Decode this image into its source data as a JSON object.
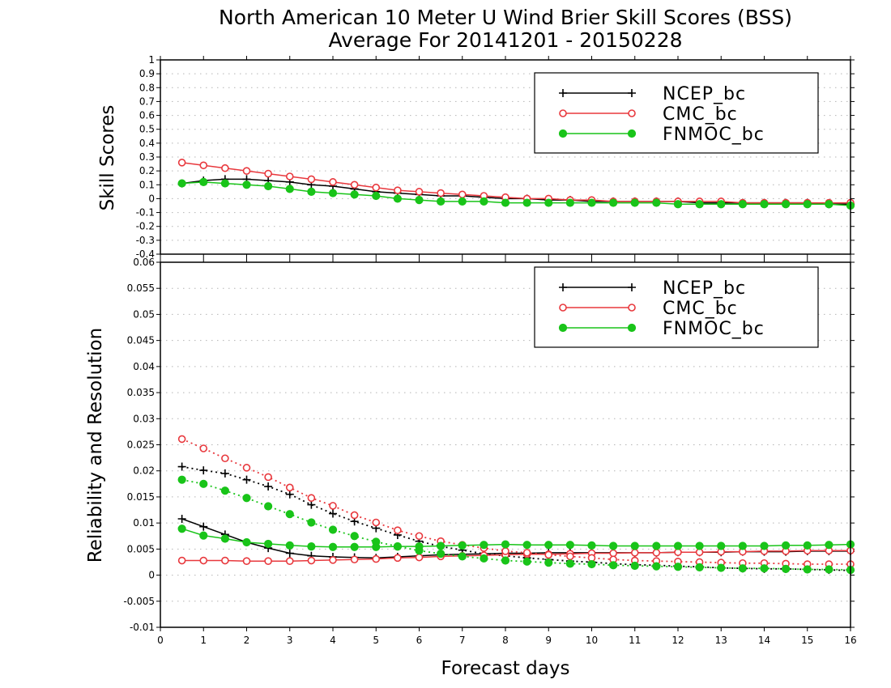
{
  "title_line1": "North American 10 Meter U Wind Brier Skill Scores (BSS)",
  "title_line2": "Average For 20141201 - 20150228",
  "colors": {
    "NCEP_bc": "#000000",
    "CMC_bc": "#e8383d",
    "FNMOC_bc": "#19c419"
  },
  "chart_data": [
    {
      "type": "line",
      "ylabel": "Skill Scores",
      "ylim": [
        -0.4,
        1
      ],
      "yticks": [
        "-0.4",
        "-0.3",
        "-0.2",
        "-0.1",
        "0",
        "0.1",
        "0.2",
        "0.3",
        "0.4",
        "0.5",
        "0.6",
        "0.7",
        "0.8",
        "0.9",
        "1"
      ],
      "xlim": [
        0,
        16
      ],
      "grid": true,
      "legend": {
        "position": "top-right",
        "labels": [
          "NCEP_bc",
          "CMC_bc",
          "FNMOC_bc"
        ]
      },
      "x": [
        0.5,
        1,
        1.5,
        2,
        2.5,
        3,
        3.5,
        4,
        4.5,
        5,
        5.5,
        6,
        6.5,
        7,
        7.5,
        8,
        8.5,
        9,
        9.5,
        10,
        10.5,
        11,
        11.5,
        12,
        12.5,
        13,
        13.5,
        14,
        14.5,
        15,
        15.5,
        16
      ],
      "series": [
        {
          "name": "NCEP_bc",
          "marker": "plus",
          "style": "solid",
          "values": [
            0.11,
            0.13,
            0.14,
            0.14,
            0.13,
            0.12,
            0.1,
            0.09,
            0.07,
            0.05,
            0.04,
            0.03,
            0.02,
            0.02,
            0.01,
            0.0,
            0.0,
            -0.01,
            -0.01,
            -0.02,
            -0.02,
            -0.02,
            -0.02,
            -0.02,
            -0.03,
            -0.03,
            -0.03,
            -0.03,
            -0.03,
            -0.03,
            -0.04,
            -0.04
          ]
        },
        {
          "name": "CMC_bc",
          "marker": "circle-open",
          "style": "solid",
          "values": [
            0.26,
            0.24,
            0.22,
            0.2,
            0.18,
            0.16,
            0.14,
            0.12,
            0.1,
            0.08,
            0.06,
            0.05,
            0.04,
            0.03,
            0.02,
            0.01,
            0.0,
            0.0,
            -0.01,
            -0.01,
            -0.02,
            -0.02,
            -0.02,
            -0.02,
            -0.02,
            -0.02,
            -0.03,
            -0.03,
            -0.03,
            -0.03,
            -0.03,
            -0.03
          ]
        },
        {
          "name": "FNMOC_bc",
          "marker": "circle-filled",
          "style": "solid",
          "values": [
            0.11,
            0.12,
            0.11,
            0.1,
            0.09,
            0.07,
            0.05,
            0.04,
            0.03,
            0.02,
            0.0,
            -0.01,
            -0.02,
            -0.02,
            -0.02,
            -0.03,
            -0.03,
            -0.03,
            -0.03,
            -0.03,
            -0.03,
            -0.03,
            -0.03,
            -0.04,
            -0.04,
            -0.04,
            -0.04,
            -0.04,
            -0.04,
            -0.04,
            -0.04,
            -0.05
          ]
        }
      ]
    },
    {
      "type": "line",
      "ylabel": "Reliability and Resolution",
      "xlabel": "Forecast days",
      "ylim": [
        -0.01,
        0.06
      ],
      "yticks": [
        "-0.01",
        "-0.005",
        "0",
        "0.005",
        "0.01",
        "0.015",
        "0.02",
        "0.025",
        "0.03",
        "0.035",
        "0.04",
        "0.045",
        "0.05",
        "0.055",
        "0.06"
      ],
      "xlim": [
        0,
        16
      ],
      "xticks": [
        "0",
        "1",
        "2",
        "3",
        "4",
        "5",
        "6",
        "7",
        "8",
        "9",
        "10",
        "11",
        "12",
        "13",
        "14",
        "15",
        "16"
      ],
      "grid": true,
      "legend": {
        "position": "top-right",
        "labels": [
          "NCEP_bc",
          "CMC_bc",
          "FNMOC_bc"
        ]
      },
      "x": [
        0.5,
        1,
        1.5,
        2,
        2.5,
        3,
        3.5,
        4,
        4.5,
        5,
        5.5,
        6,
        6.5,
        7,
        7.5,
        8,
        8.5,
        9,
        9.5,
        10,
        10.5,
        11,
        11.5,
        12,
        12.5,
        13,
        13.5,
        14,
        14.5,
        15,
        15.5,
        16
      ],
      "series": [
        {
          "name": "NCEP_bc",
          "marker": "plus",
          "style": "solid",
          "values": [
            0.0108,
            0.0093,
            0.0078,
            0.0063,
            0.0052,
            0.0042,
            0.0037,
            0.0035,
            0.0034,
            0.0033,
            0.0035,
            0.0037,
            0.0039,
            0.004,
            0.0041,
            0.0042,
            0.0042,
            0.0043,
            0.0043,
            0.0043,
            0.0043,
            0.0043,
            0.0043,
            0.0044,
            0.0044,
            0.0044,
            0.0045,
            0.0045,
            0.0045,
            0.0046,
            0.0046,
            0.0046
          ]
        },
        {
          "name": "NCEP_bc",
          "marker": "plus",
          "style": "dotted",
          "values": [
            0.0208,
            0.0201,
            0.0195,
            0.0183,
            0.017,
            0.0155,
            0.0135,
            0.0118,
            0.0103,
            0.009,
            0.0077,
            0.0065,
            0.0055,
            0.0048,
            0.0041,
            0.0037,
            0.0033,
            0.003,
            0.0027,
            0.0025,
            0.0022,
            0.002,
            0.0019,
            0.0017,
            0.0016,
            0.0014,
            0.0013,
            0.0012,
            0.0012,
            0.0011,
            0.001,
            0.0009
          ]
        },
        {
          "name": "CMC_bc",
          "marker": "circle-open",
          "style": "solid",
          "values": [
            0.0028,
            0.0028,
            0.0028,
            0.0027,
            0.0027,
            0.0027,
            0.0028,
            0.0029,
            0.003,
            0.0031,
            0.0033,
            0.0034,
            0.0036,
            0.0037,
            0.0038,
            0.0039,
            0.004,
            0.004,
            0.0041,
            0.0042,
            0.0042,
            0.0043,
            0.0043,
            0.0044,
            0.0044,
            0.0045,
            0.0045,
            0.0046,
            0.0046,
            0.0047,
            0.0047,
            0.0047
          ]
        },
        {
          "name": "CMC_bc",
          "marker": "circle-open",
          "style": "dotted",
          "values": [
            0.0261,
            0.0243,
            0.0224,
            0.0206,
            0.0188,
            0.0168,
            0.0148,
            0.0133,
            0.0115,
            0.0101,
            0.0086,
            0.0075,
            0.0065,
            0.0058,
            0.0052,
            0.0046,
            0.0043,
            0.0039,
            0.0036,
            0.0033,
            0.003,
            0.0028,
            0.0027,
            0.0026,
            0.0025,
            0.0024,
            0.0023,
            0.0023,
            0.0022,
            0.0021,
            0.0021,
            0.0021
          ]
        },
        {
          "name": "FNMOC_bc",
          "marker": "circle-filled",
          "style": "solid",
          "values": [
            0.0089,
            0.0076,
            0.007,
            0.0063,
            0.006,
            0.0057,
            0.0055,
            0.0054,
            0.0054,
            0.0054,
            0.0055,
            0.0055,
            0.0056,
            0.0057,
            0.0058,
            0.0059,
            0.0058,
            0.0058,
            0.0058,
            0.0057,
            0.0056,
            0.0056,
            0.0056,
            0.0056,
            0.0056,
            0.0056,
            0.0056,
            0.0056,
            0.0057,
            0.0057,
            0.0058,
            0.0059
          ]
        },
        {
          "name": "FNMOC_bc",
          "marker": "circle-filled",
          "style": "dotted",
          "values": [
            0.0183,
            0.0175,
            0.0162,
            0.0148,
            0.0132,
            0.0117,
            0.0101,
            0.0087,
            0.0075,
            0.0064,
            0.0055,
            0.0047,
            0.0041,
            0.0036,
            0.0032,
            0.0028,
            0.0026,
            0.0024,
            0.0022,
            0.0021,
            0.0019,
            0.0018,
            0.0017,
            0.0016,
            0.0015,
            0.0014,
            0.0013,
            0.0013,
            0.0012,
            0.0011,
            0.0011,
            0.001
          ]
        }
      ]
    }
  ]
}
